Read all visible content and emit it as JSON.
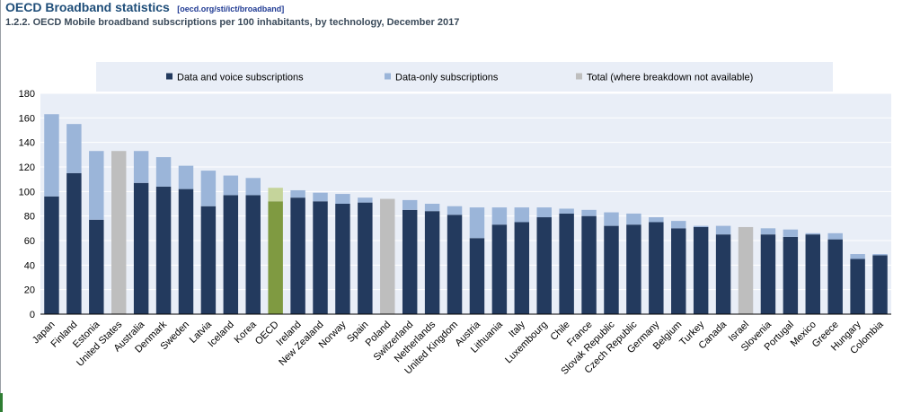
{
  "header": {
    "title": "OECD Broadband statistics",
    "source": "[oecd.org/sti/ict/broadband]",
    "subtitle": "1.2.2. OECD Mobile broadband subscriptions per 100 inhabitants, by technology, December 2017"
  },
  "chart_data": {
    "type": "bar",
    "stacked": true,
    "categories": [
      "Japan",
      "Finland",
      "Estonia",
      "United States",
      "Australia",
      "Denmark",
      "Sweden",
      "Latvia",
      "Iceland",
      "Korea",
      "OECD",
      "Ireland",
      "New Zealand",
      "Norway",
      "Spain",
      "Poland",
      "Switzerland",
      "Netherlands",
      "United Kingdom",
      "Austria",
      "Lithuania",
      "Italy",
      "Luxembourg",
      "Chile",
      "France",
      "Slovak Republic",
      "Czech Republic",
      "Germany",
      "Belgium",
      "Turkey",
      "Canada",
      "Israel",
      "Slovenia",
      "Portugal",
      "Mexico",
      "Greece",
      "Hungary",
      "Colombia"
    ],
    "series": [
      {
        "name": "Data and voice subscriptions",
        "color": "#233a5e",
        "values": [
          96,
          115,
          77,
          null,
          107,
          104,
          102,
          88,
          97,
          97,
          92,
          95,
          92,
          90,
          91,
          null,
          85,
          84,
          81,
          62,
          73,
          75,
          79,
          82,
          80,
          72,
          73,
          75,
          70,
          71,
          65,
          null,
          65,
          63,
          65,
          61,
          45,
          48
        ]
      },
      {
        "name": "Data-only subscriptions",
        "color": "#9bb5d9",
        "values": [
          67,
          40,
          56,
          null,
          26,
          24,
          19,
          29,
          16,
          14,
          11,
          6,
          7,
          8,
          4,
          null,
          8,
          6,
          7,
          25,
          14,
          12,
          8,
          4,
          5,
          11,
          9,
          4,
          6,
          1,
          7,
          null,
          5,
          6,
          1,
          5,
          4,
          1
        ]
      },
      {
        "name": "Total (where breakdown not available)",
        "color": "#bebebe",
        "values": [
          null,
          null,
          null,
          133,
          null,
          null,
          null,
          null,
          null,
          null,
          null,
          null,
          null,
          null,
          null,
          94,
          null,
          null,
          null,
          null,
          null,
          null,
          null,
          null,
          null,
          null,
          null,
          null,
          null,
          null,
          null,
          71,
          null,
          null,
          null,
          null,
          null,
          null
        ]
      }
    ],
    "highlight": {
      "category": "OECD",
      "colors": [
        "#7f9a41",
        "#c5d49b"
      ]
    },
    "ylim": [
      0,
      180
    ],
    "yticks": [
      0,
      20,
      40,
      60,
      80,
      100,
      120,
      140,
      160,
      180
    ],
    "grid": true,
    "background": "#e9eef7",
    "legend_position": "top"
  }
}
